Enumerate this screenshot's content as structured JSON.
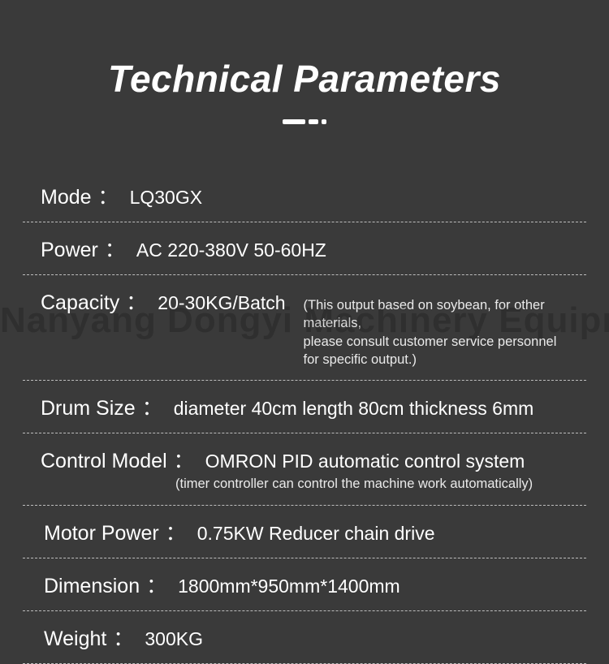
{
  "colors": {
    "background": "#3a3a3a",
    "text": "#ffffff",
    "divider": "#bdbdbd",
    "note": "#eaeaea",
    "watermark": "rgba(0,0,0,0.18)"
  },
  "title": "Technical  Parameters",
  "watermark": "Nanyang Dongyi Machinery Equipment Co., Ltd",
  "rows": {
    "mode": {
      "label": "Mode",
      "value": "LQ30GX"
    },
    "power": {
      "label": "Power",
      "value": "AC 220-380V   50-60HZ"
    },
    "capacity": {
      "label": "Capacity",
      "value": "20-30KG/Batch",
      "note1": "(This output based on soybean, for other materials,",
      "note2": "please consult customer service personnel for specific output.)"
    },
    "drum": {
      "label": "Drum Size",
      "value": "diameter 40cm  length 80cm   thickness 6mm"
    },
    "control": {
      "label": "Control Model",
      "value": "OMRON PID automatic control system",
      "note": "(timer controller can control the machine work automatically)"
    },
    "motor": {
      "label": "Motor Power",
      "value": "0.75KW  Reducer chain drive"
    },
    "dimension": {
      "label": "Dimension",
      "value": "1800mm*950mm*1400mm"
    },
    "weight": {
      "label": "Weight",
      "value": "300KG"
    }
  }
}
